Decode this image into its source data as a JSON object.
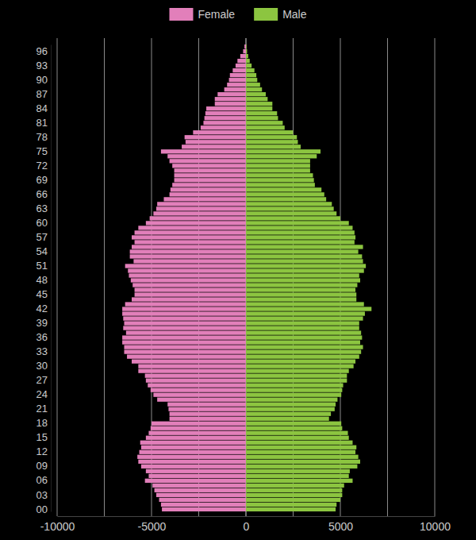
{
  "chart_data": {
    "type": "bar",
    "orientation": "horizontal",
    "grid": true,
    "legend": "top",
    "categories": [
      "00",
      null,
      null,
      "03",
      null,
      null,
      "06",
      null,
      null,
      "09",
      null,
      null,
      "12",
      null,
      null,
      "15",
      null,
      null,
      "18",
      null,
      null,
      "21",
      null,
      null,
      "24",
      null,
      null,
      "27",
      null,
      null,
      "30",
      null,
      null,
      "33",
      null,
      null,
      "36",
      null,
      null,
      "39",
      null,
      null,
      "42",
      null,
      null,
      "45",
      null,
      null,
      "48",
      null,
      null,
      "51",
      null,
      null,
      "54",
      null,
      null,
      "57",
      null,
      null,
      "60",
      null,
      null,
      "63",
      null,
      null,
      "66",
      null,
      null,
      "69",
      null,
      null,
      "72",
      null,
      null,
      "75",
      null,
      null,
      "78",
      null,
      null,
      "81",
      null,
      null,
      "84",
      null,
      null,
      "87",
      null,
      null,
      "90",
      null,
      null,
      "93",
      null,
      null,
      "96",
      null
    ],
    "series": [
      {
        "name": "Female",
        "color": "#e27fba",
        "values": [
          -4450,
          -4500,
          -4600,
          -4750,
          -4850,
          -4950,
          -5350,
          -5150,
          -5300,
          -5550,
          -5700,
          -5750,
          -5650,
          -5550,
          -5600,
          -5300,
          -5150,
          -5050,
          -5000,
          -4050,
          -4050,
          -4100,
          -4150,
          -4700,
          -4900,
          -5050,
          -5200,
          -5300,
          -5350,
          -5700,
          -5700,
          -6050,
          -6300,
          -6450,
          -6450,
          -6550,
          -6550,
          -6350,
          -6500,
          -6450,
          -6500,
          -6550,
          -6550,
          -6400,
          -6050,
          -5900,
          -5900,
          -6000,
          -6100,
          -6200,
          -6250,
          -6400,
          -5950,
          -6150,
          -6150,
          -6050,
          -5900,
          -6050,
          -5900,
          -5700,
          -5300,
          -5100,
          -4900,
          -4750,
          -4700,
          -4350,
          -4050,
          -4000,
          -3900,
          -3800,
          -3800,
          -3800,
          -3900,
          -4050,
          -4150,
          -4500,
          -3400,
          -3200,
          -3250,
          -2800,
          -2400,
          -2250,
          -2200,
          -2150,
          -2100,
          -1650,
          -1650,
          -1500,
          -1150,
          -1000,
          -900,
          -850,
          -700,
          -550,
          -450,
          -300,
          -150,
          -80
        ]
      },
      {
        "name": "Male",
        "color": "#8cc540",
        "values": [
          4750,
          4800,
          5000,
          5100,
          5100,
          5200,
          5650,
          5450,
          5500,
          5900,
          6050,
          5950,
          5800,
          5850,
          5650,
          5450,
          5400,
          5100,
          5050,
          4400,
          4500,
          4700,
          4750,
          4850,
          5050,
          5100,
          5150,
          5350,
          5350,
          5450,
          5700,
          5800,
          6000,
          6100,
          6200,
          6050,
          6150,
          6100,
          6000,
          6000,
          6200,
          6300,
          6650,
          6250,
          5850,
          5850,
          5800,
          5900,
          6050,
          6000,
          6250,
          6350,
          6200,
          6150,
          5950,
          6200,
          5750,
          5800,
          5750,
          5650,
          5450,
          5000,
          4800,
          4650,
          4550,
          4250,
          4150,
          4000,
          3650,
          3600,
          3550,
          3400,
          3400,
          3400,
          3750,
          3950,
          2900,
          2750,
          2700,
          2500,
          2050,
          1950,
          1700,
          1650,
          1400,
          1400,
          1150,
          1050,
          850,
          750,
          600,
          550,
          450,
          300,
          200,
          120,
          60,
          30
        ]
      }
    ],
    "xlim": [
      -10000,
      10000
    ],
    "xticks": [
      -10000,
      -5000,
      0,
      5000,
      10000
    ]
  }
}
